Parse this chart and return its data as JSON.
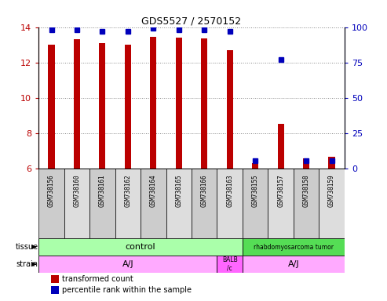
{
  "title": "GDS5527 / 2570152",
  "samples": [
    "GSM738156",
    "GSM738160",
    "GSM738161",
    "GSM738162",
    "GSM738164",
    "GSM738165",
    "GSM738166",
    "GSM738163",
    "GSM738155",
    "GSM738157",
    "GSM738158",
    "GSM738159"
  ],
  "red_values": [
    13.0,
    13.3,
    13.1,
    13.0,
    13.45,
    13.4,
    13.35,
    12.7,
    6.35,
    8.55,
    6.6,
    6.7
  ],
  "blue_values": [
    98,
    98,
    97,
    97,
    99,
    98,
    98,
    97,
    6,
    77,
    6,
    6
  ],
  "y_min": 6,
  "y_max": 14,
  "y_ticks_red": [
    6,
    8,
    10,
    12,
    14
  ],
  "y_ticks_blue": [
    0,
    25,
    50,
    75,
    100
  ],
  "bar_color_red": "#BB0000",
  "bar_color_blue": "#0000BB",
  "tick_color_red": "#BB0000",
  "tick_color_blue": "#0000BB",
  "grid_color": "#888888",
  "bar_width": 0.25,
  "tissue_color_control": "#AAFFAA",
  "tissue_color_tumor": "#55DD55",
  "strain_color_aj": "#FFAAFF",
  "strain_color_balb": "#FF66FF",
  "sample_box_color": "#CCCCCC",
  "sample_box_color2": "#DDDDDD"
}
